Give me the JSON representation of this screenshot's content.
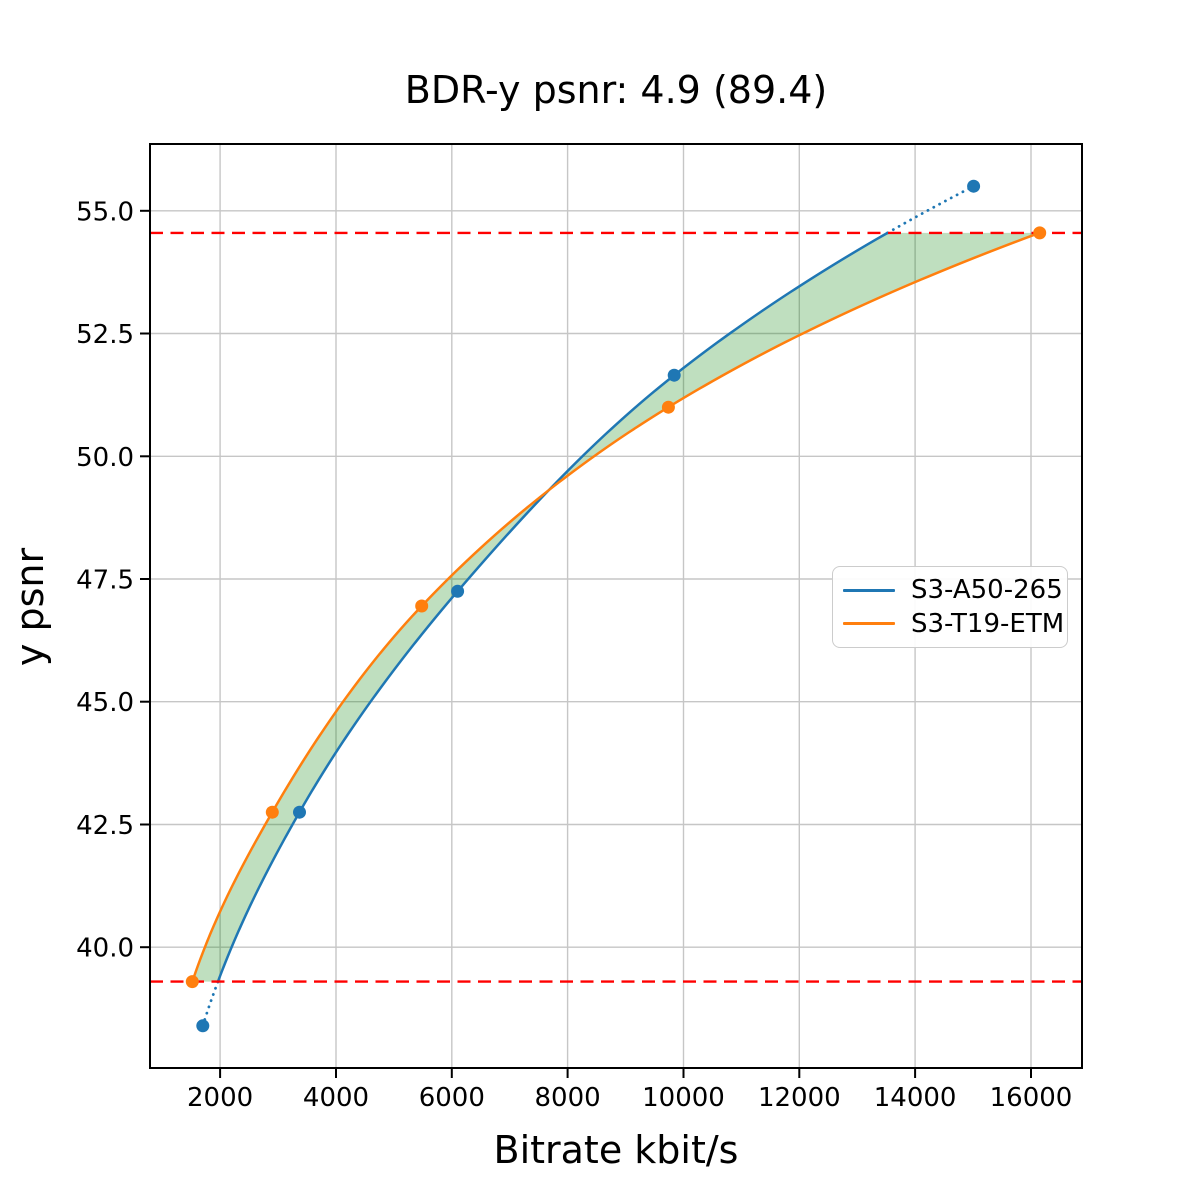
{
  "chart_data": {
    "type": "line",
    "title": "BDR-y psnr: 4.9 (89.4)",
    "xlabel": "Bitrate kbit/s",
    "ylabel": "y psnr",
    "xlim": [
      789,
      16881
    ],
    "ylim": [
      37.54,
      56.36
    ],
    "x_ticks": [
      2000,
      4000,
      6000,
      8000,
      10000,
      12000,
      14000,
      16000
    ],
    "y_ticks": [
      40.0,
      42.5,
      45.0,
      47.5,
      50.0,
      52.5,
      55.0
    ],
    "grid": true,
    "legend": {
      "position": "center-right"
    },
    "series": [
      {
        "name": "S3-A50-265",
        "color": "#1f77b4",
        "marker": "circle",
        "points": [
          [
            1700,
            38.4
          ],
          [
            3370,
            42.75
          ],
          [
            6100,
            47.25
          ],
          [
            9840,
            51.65
          ],
          [
            15010,
            55.5
          ]
        ]
      },
      {
        "name": "S3-T19-ETM",
        "color": "#ff7f0e",
        "marker": "circle",
        "points": [
          [
            1520,
            39.3
          ],
          [
            2900,
            42.75
          ],
          [
            5480,
            46.95
          ],
          [
            9740,
            51.0
          ],
          [
            16150,
            54.55
          ]
        ]
      }
    ],
    "bd_interval_lines": {
      "lower_psnr": 39.3,
      "upper_psnr": 54.55,
      "color": "#ff0000",
      "style": "dashed"
    },
    "shaded_area": {
      "between": "the two rate-distortion curves over the psnr interval",
      "fill": "rgba(0,128,0,0.25)"
    },
    "style": {
      "grid_color": "#c6c6c6",
      "spine_color": "#000000",
      "background": "#ffffff",
      "blue_out_of_range_segments": "dotted"
    }
  }
}
